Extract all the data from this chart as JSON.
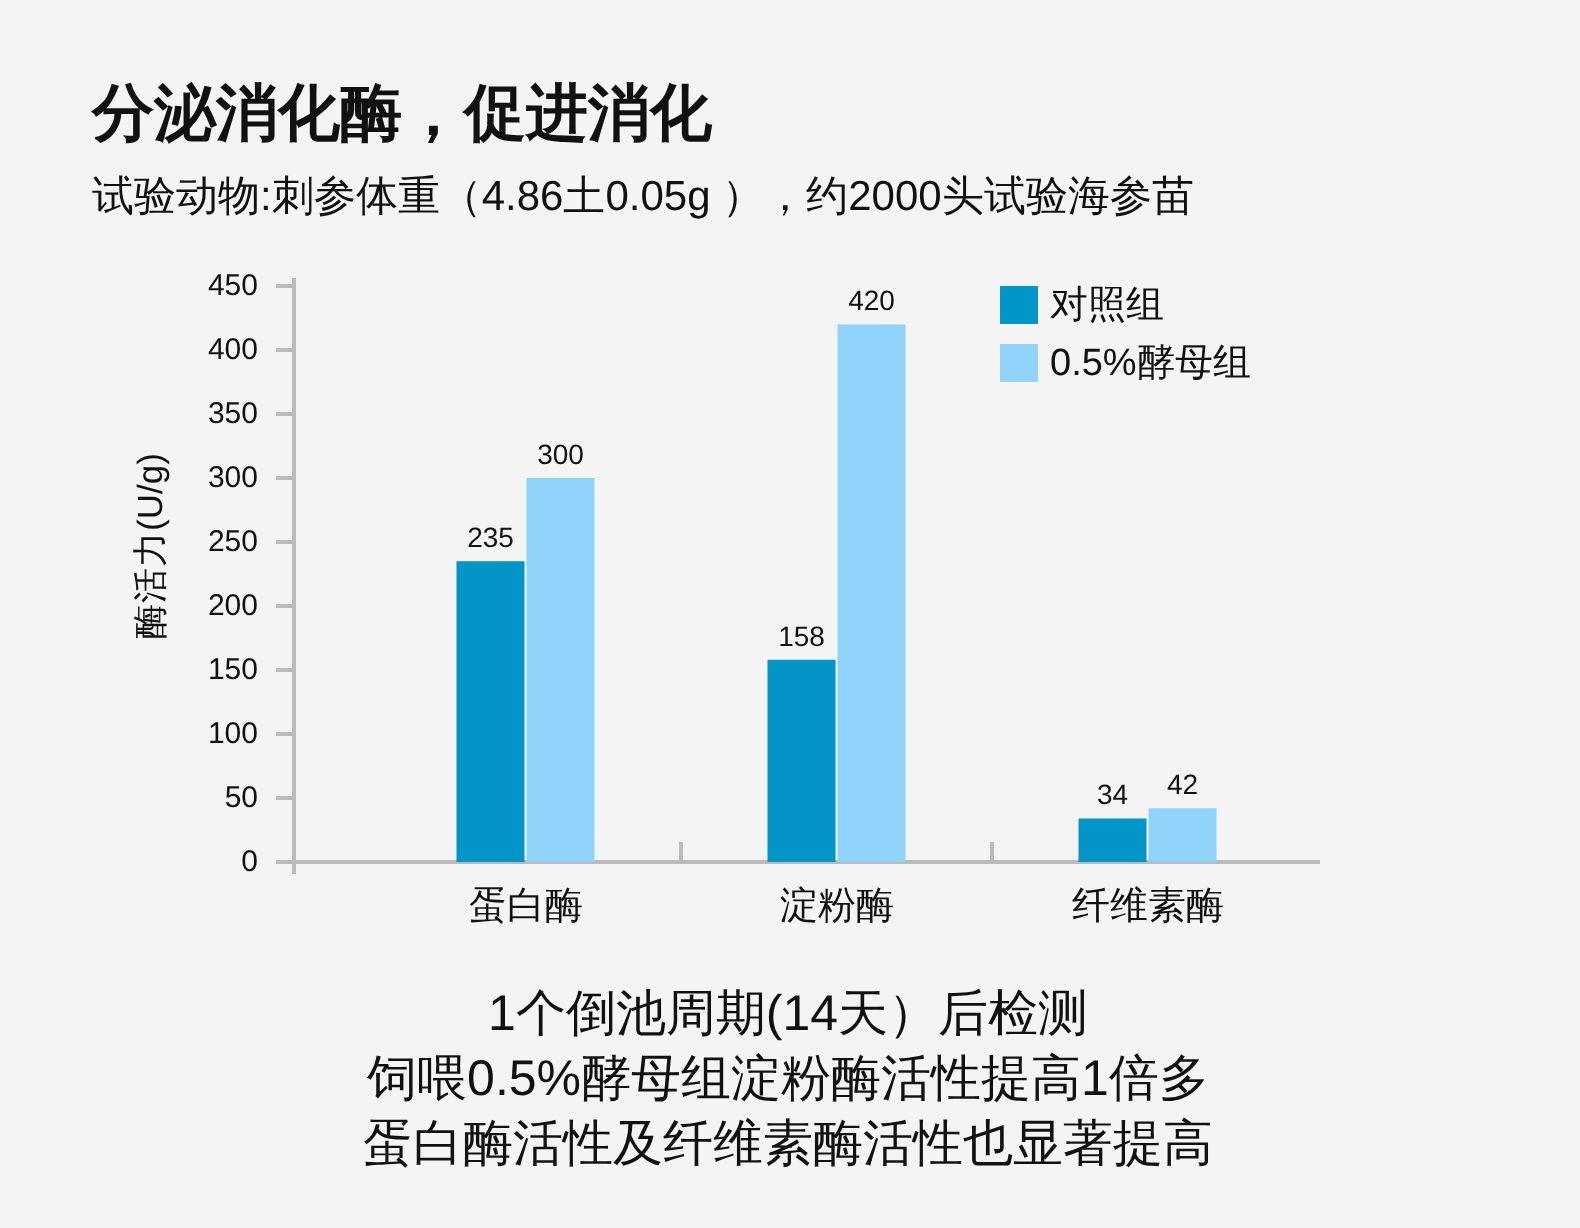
{
  "chart_data": {
    "type": "bar",
    "title": "分泌消化酶，促进消化",
    "subtitle": "试验动物:刺参体重（4.86土0.05g ），约2000头试验海参苗",
    "ylabel": "酶活力(U/g)",
    "categories": [
      "蛋白酶",
      "淀粉酶",
      "纤维素酶"
    ],
    "series": [
      {
        "name": "对照组",
        "color": "#0394c8",
        "values": [
          235,
          158,
          34
        ]
      },
      {
        "name": "0.5%酵母组",
        "color": "#90d4fc",
        "values": [
          300,
          420,
          42
        ]
      }
    ],
    "ylim": [
      0,
      450
    ],
    "yticks": [
      0,
      50,
      100,
      150,
      200,
      250,
      300,
      350,
      400,
      450
    ],
    "data_labels": true,
    "legend": "top right",
    "annotations": [
      "1个倒池周期(14天）后检测",
      "饲喂0.5%酵母组淀粉酶活性提高1倍多",
      "蛋白酶活性及纤维素酶活性也显著提高"
    ]
  }
}
